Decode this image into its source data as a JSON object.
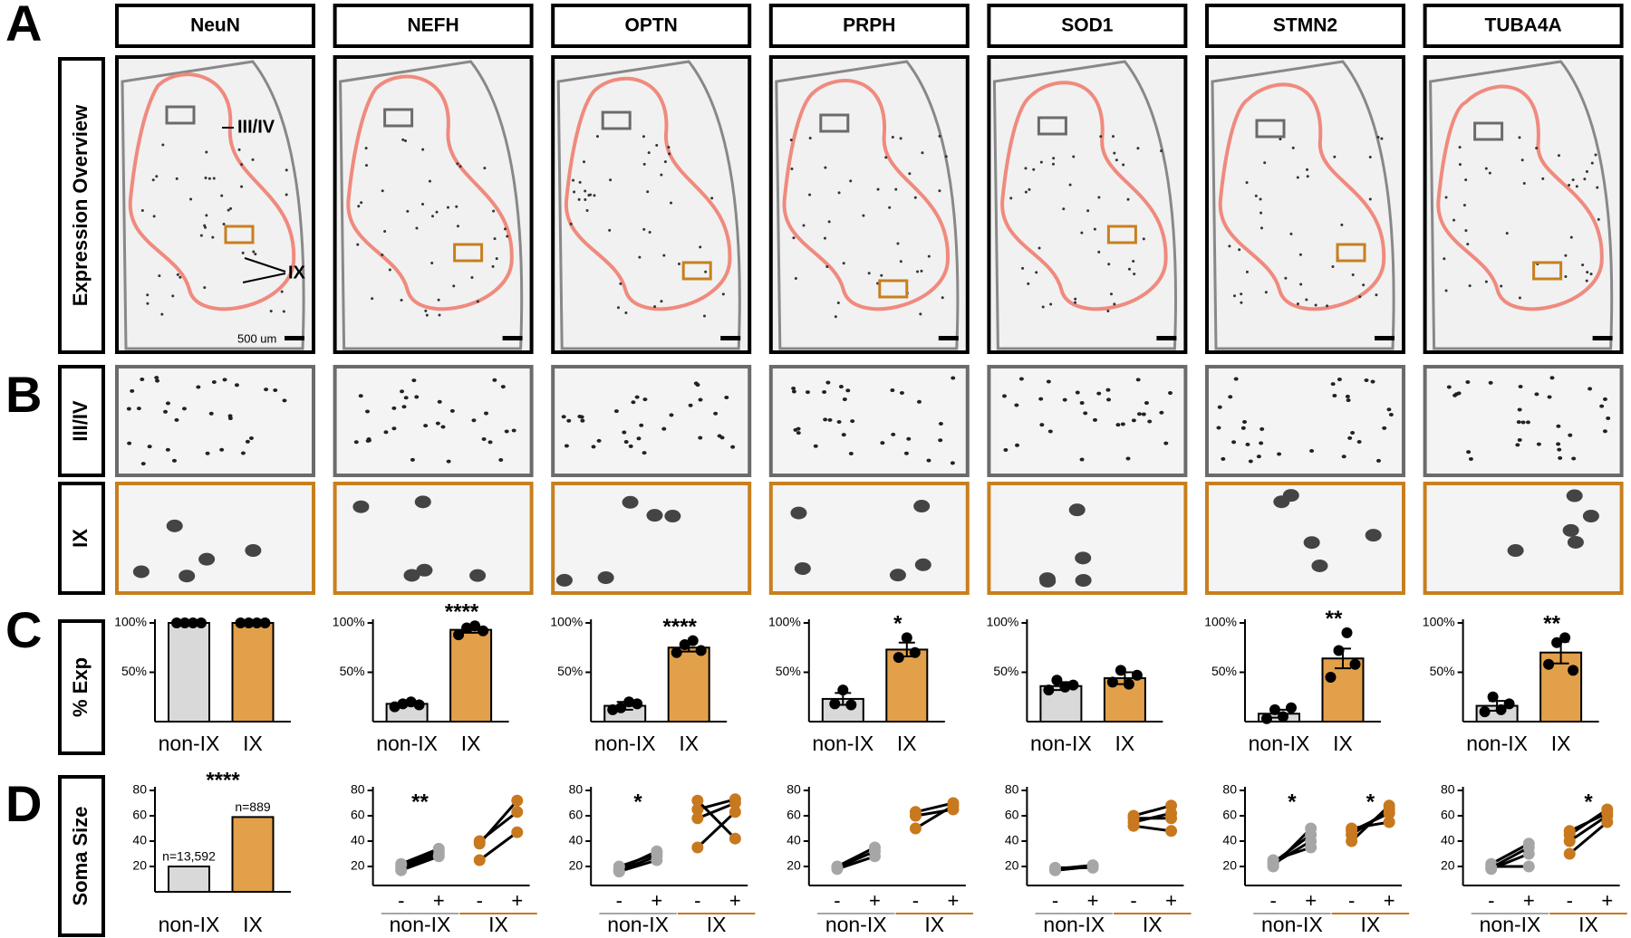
{
  "panel_labels": [
    "A",
    "B",
    "C",
    "D"
  ],
  "column_headers": [
    "NeuN",
    "NEFH",
    "OPTN",
    "PRPH",
    "SOD1",
    "STMN2",
    "TUBA4A"
  ],
  "row_labels": [
    "Expression Overview",
    "III/IV",
    "IX",
    "% Exp",
    "Soma Size"
  ],
  "overview_annotations": {
    "lamina_3_4": "III/IV",
    "lamina_9": "IX",
    "scale_bar": "500 um"
  },
  "chart_data": [
    {
      "type": "bar",
      "categories": [
        "non-IX",
        "IX"
      ],
      "values": [
        100,
        100
      ],
      "colors": [
        "#d9d9d9",
        "#e2a04b"
      ],
      "points": [
        [
          100,
          100,
          100,
          100
        ],
        [
          100,
          100,
          100,
          100
        ]
      ],
      "ylim": [
        0,
        100
      ],
      "yticks": [
        {
          "value": 50,
          "label": "50%"
        },
        {
          "value": 100,
          "label": "100%"
        }
      ]
    },
    {
      "type": "bar",
      "categories": [
        "non-IX",
        "IX"
      ],
      "values": [
        18,
        93
      ],
      "colors": [
        "#d9d9d9",
        "#e2a04b"
      ],
      "errors": [
        2,
        3
      ],
      "points": [
        [
          15,
          18,
          20,
          17
        ],
        [
          88,
          95,
          97,
          92
        ]
      ],
      "ylim": [
        0,
        100
      ],
      "yticks": [
        {
          "value": 50,
          "label": "50%"
        },
        {
          "value": 100,
          "label": "100%"
        }
      ],
      "significance": "****"
    },
    {
      "type": "bar",
      "categories": [
        "non-IX",
        "IX"
      ],
      "values": [
        16,
        75
      ],
      "colors": [
        "#d9d9d9",
        "#e2a04b"
      ],
      "errors": [
        4,
        4
      ],
      "points": [
        [
          12,
          14,
          20,
          18
        ],
        [
          70,
          78,
          82,
          72
        ]
      ],
      "ylim": [
        0,
        100
      ],
      "yticks": [
        {
          "value": 50,
          "label": "50%"
        },
        {
          "value": 100,
          "label": "100%"
        }
      ],
      "significance": "****"
    },
    {
      "type": "bar",
      "categories": [
        "non-IX",
        "IX"
      ],
      "values": [
        23,
        73
      ],
      "colors": [
        "#d9d9d9",
        "#e2a04b"
      ],
      "errors": [
        6,
        7
      ],
      "points": [
        [
          18,
          32,
          17
        ],
        [
          65,
          85,
          70
        ]
      ],
      "ylim": [
        0,
        100
      ],
      "yticks": [
        {
          "value": 50,
          "label": "50%"
        },
        {
          "value": 100,
          "label": "100%"
        }
      ],
      "significance": "*"
    },
    {
      "type": "bar",
      "categories": [
        "non-IX",
        "IX"
      ],
      "values": [
        36,
        44
      ],
      "colors": [
        "#d9d9d9",
        "#e2a04b"
      ],
      "errors": [
        4,
        6
      ],
      "points": [
        [
          32,
          42,
          35,
          37
        ],
        [
          40,
          52,
          38,
          47
        ]
      ],
      "ylim": [
        0,
        100
      ],
      "yticks": [
        {
          "value": 50,
          "label": "50%"
        },
        {
          "value": 100,
          "label": "100%"
        }
      ]
    },
    {
      "type": "bar",
      "categories": [
        "non-IX",
        "IX"
      ],
      "values": [
        8,
        64
      ],
      "colors": [
        "#d9d9d9",
        "#e2a04b"
      ],
      "errors": [
        4,
        10
      ],
      "points": [
        [
          3,
          12,
          5,
          14
        ],
        [
          45,
          72,
          90,
          58
        ]
      ],
      "ylim": [
        0,
        100
      ],
      "yticks": [
        {
          "value": 50,
          "label": "50%"
        },
        {
          "value": 100,
          "label": "100%"
        }
      ],
      "significance": "**"
    },
    {
      "type": "bar",
      "categories": [
        "non-IX",
        "IX"
      ],
      "values": [
        16,
        70
      ],
      "colors": [
        "#d9d9d9",
        "#e2a04b"
      ],
      "errors": [
        5,
        11
      ],
      "points": [
        [
          10,
          25,
          12,
          18
        ],
        [
          58,
          80,
          85,
          52
        ]
      ],
      "ylim": [
        0,
        100
      ],
      "yticks": [
        {
          "value": 50,
          "label": "50%"
        },
        {
          "value": 100,
          "label": "100%"
        }
      ],
      "significance": "**"
    },
    {
      "type": "bar",
      "categories": [
        "non-IX",
        "IX"
      ],
      "values": [
        20,
        59
      ],
      "colors": [
        "#d9d9d9",
        "#e2a04b"
      ],
      "n_labels": [
        "n=13,592",
        "n=889"
      ],
      "ylim": [
        0,
        80
      ],
      "yticks": [
        20,
        40,
        60,
        80
      ],
      "significance": "****"
    },
    {
      "type": "paired",
      "conditions": [
        "-",
        "+"
      ],
      "ylim": [
        5,
        80
      ],
      "yticks": [
        20,
        40,
        60,
        80
      ],
      "series": [
        {
          "name": "non-IX",
          "color": "#a6a6a6",
          "pairs": [
            [
              18,
              30
            ],
            [
              20,
              32
            ],
            [
              22,
              34
            ],
            [
              17,
              28
            ]
          ],
          "significance": "**"
        },
        {
          "name": "IX",
          "color": "#c8781e",
          "pairs": [
            [
              38,
              72
            ],
            [
              40,
              63
            ],
            [
              25,
              47
            ]
          ]
        }
      ]
    },
    {
      "type": "paired",
      "conditions": [
        "-",
        "+"
      ],
      "ylim": [
        5,
        80
      ],
      "yticks": [
        20,
        40,
        60,
        80
      ],
      "series": [
        {
          "name": "non-IX",
          "color": "#a6a6a6",
          "pairs": [
            [
              17,
              28
            ],
            [
              18,
              32
            ],
            [
              20,
              30
            ],
            [
              16,
              25
            ]
          ],
          "significance": "*"
        },
        {
          "name": "IX",
          "color": "#c8781e",
          "pairs": [
            [
              58,
              70
            ],
            [
              65,
              73
            ],
            [
              72,
              42
            ],
            [
              35,
              63
            ]
          ]
        }
      ]
    },
    {
      "type": "paired",
      "conditions": [
        "-",
        "+"
      ],
      "ylim": [
        5,
        80
      ],
      "yticks": [
        20,
        40,
        60,
        80
      ],
      "series": [
        {
          "name": "non-IX",
          "color": "#a6a6a6",
          "pairs": [
            [
              18,
              28
            ],
            [
              20,
              35
            ],
            [
              19,
              32
            ]
          ]
        },
        {
          "name": "IX",
          "color": "#c8781e",
          "pairs": [
            [
              63,
              70
            ],
            [
              50,
              68
            ],
            [
              60,
              65
            ]
          ]
        }
      ]
    },
    {
      "type": "paired",
      "conditions": [
        "-",
        "+"
      ],
      "ylim": [
        5,
        80
      ],
      "yticks": [
        20,
        40,
        60,
        80
      ],
      "series": [
        {
          "name": "non-IX",
          "color": "#a6a6a6",
          "pairs": [
            [
              17,
              20
            ],
            [
              18,
              21
            ],
            [
              19,
              19
            ],
            [
              17,
              20
            ]
          ]
        },
        {
          "name": "IX",
          "color": "#c8781e",
          "pairs": [
            [
              60,
              68
            ],
            [
              55,
              62
            ],
            [
              52,
              48
            ],
            [
              58,
              58
            ]
          ]
        }
      ]
    },
    {
      "type": "paired",
      "conditions": [
        "-",
        "+"
      ],
      "ylim": [
        5,
        80
      ],
      "yticks": [
        20,
        40,
        60,
        80
      ],
      "series": [
        {
          "name": "non-IX",
          "color": "#a6a6a6",
          "pairs": [
            [
              20,
              50
            ],
            [
              23,
              45
            ],
            [
              22,
              40
            ],
            [
              25,
              35
            ]
          ],
          "significance": "*"
        },
        {
          "name": "IX",
          "color": "#c8781e",
          "pairs": [
            [
              40,
              68
            ],
            [
              45,
              65
            ],
            [
              48,
              62
            ],
            [
              50,
              55
            ]
          ],
          "significance": "*"
        }
      ]
    },
    {
      "type": "paired",
      "conditions": [
        "-",
        "+"
      ],
      "ylim": [
        5,
        80
      ],
      "yticks": [
        20,
        40,
        60,
        80
      ],
      "series": [
        {
          "name": "non-IX",
          "color": "#a6a6a6",
          "pairs": [
            [
              18,
              30
            ],
            [
              22,
              38
            ],
            [
              20,
              20
            ],
            [
              19,
              35
            ]
          ]
        },
        {
          "name": "IX",
          "color": "#c8781e",
          "pairs": [
            [
              45,
              65
            ],
            [
              40,
              60
            ],
            [
              30,
              55
            ],
            [
              48,
              62
            ]
          ],
          "significance": "*"
        }
      ]
    }
  ]
}
